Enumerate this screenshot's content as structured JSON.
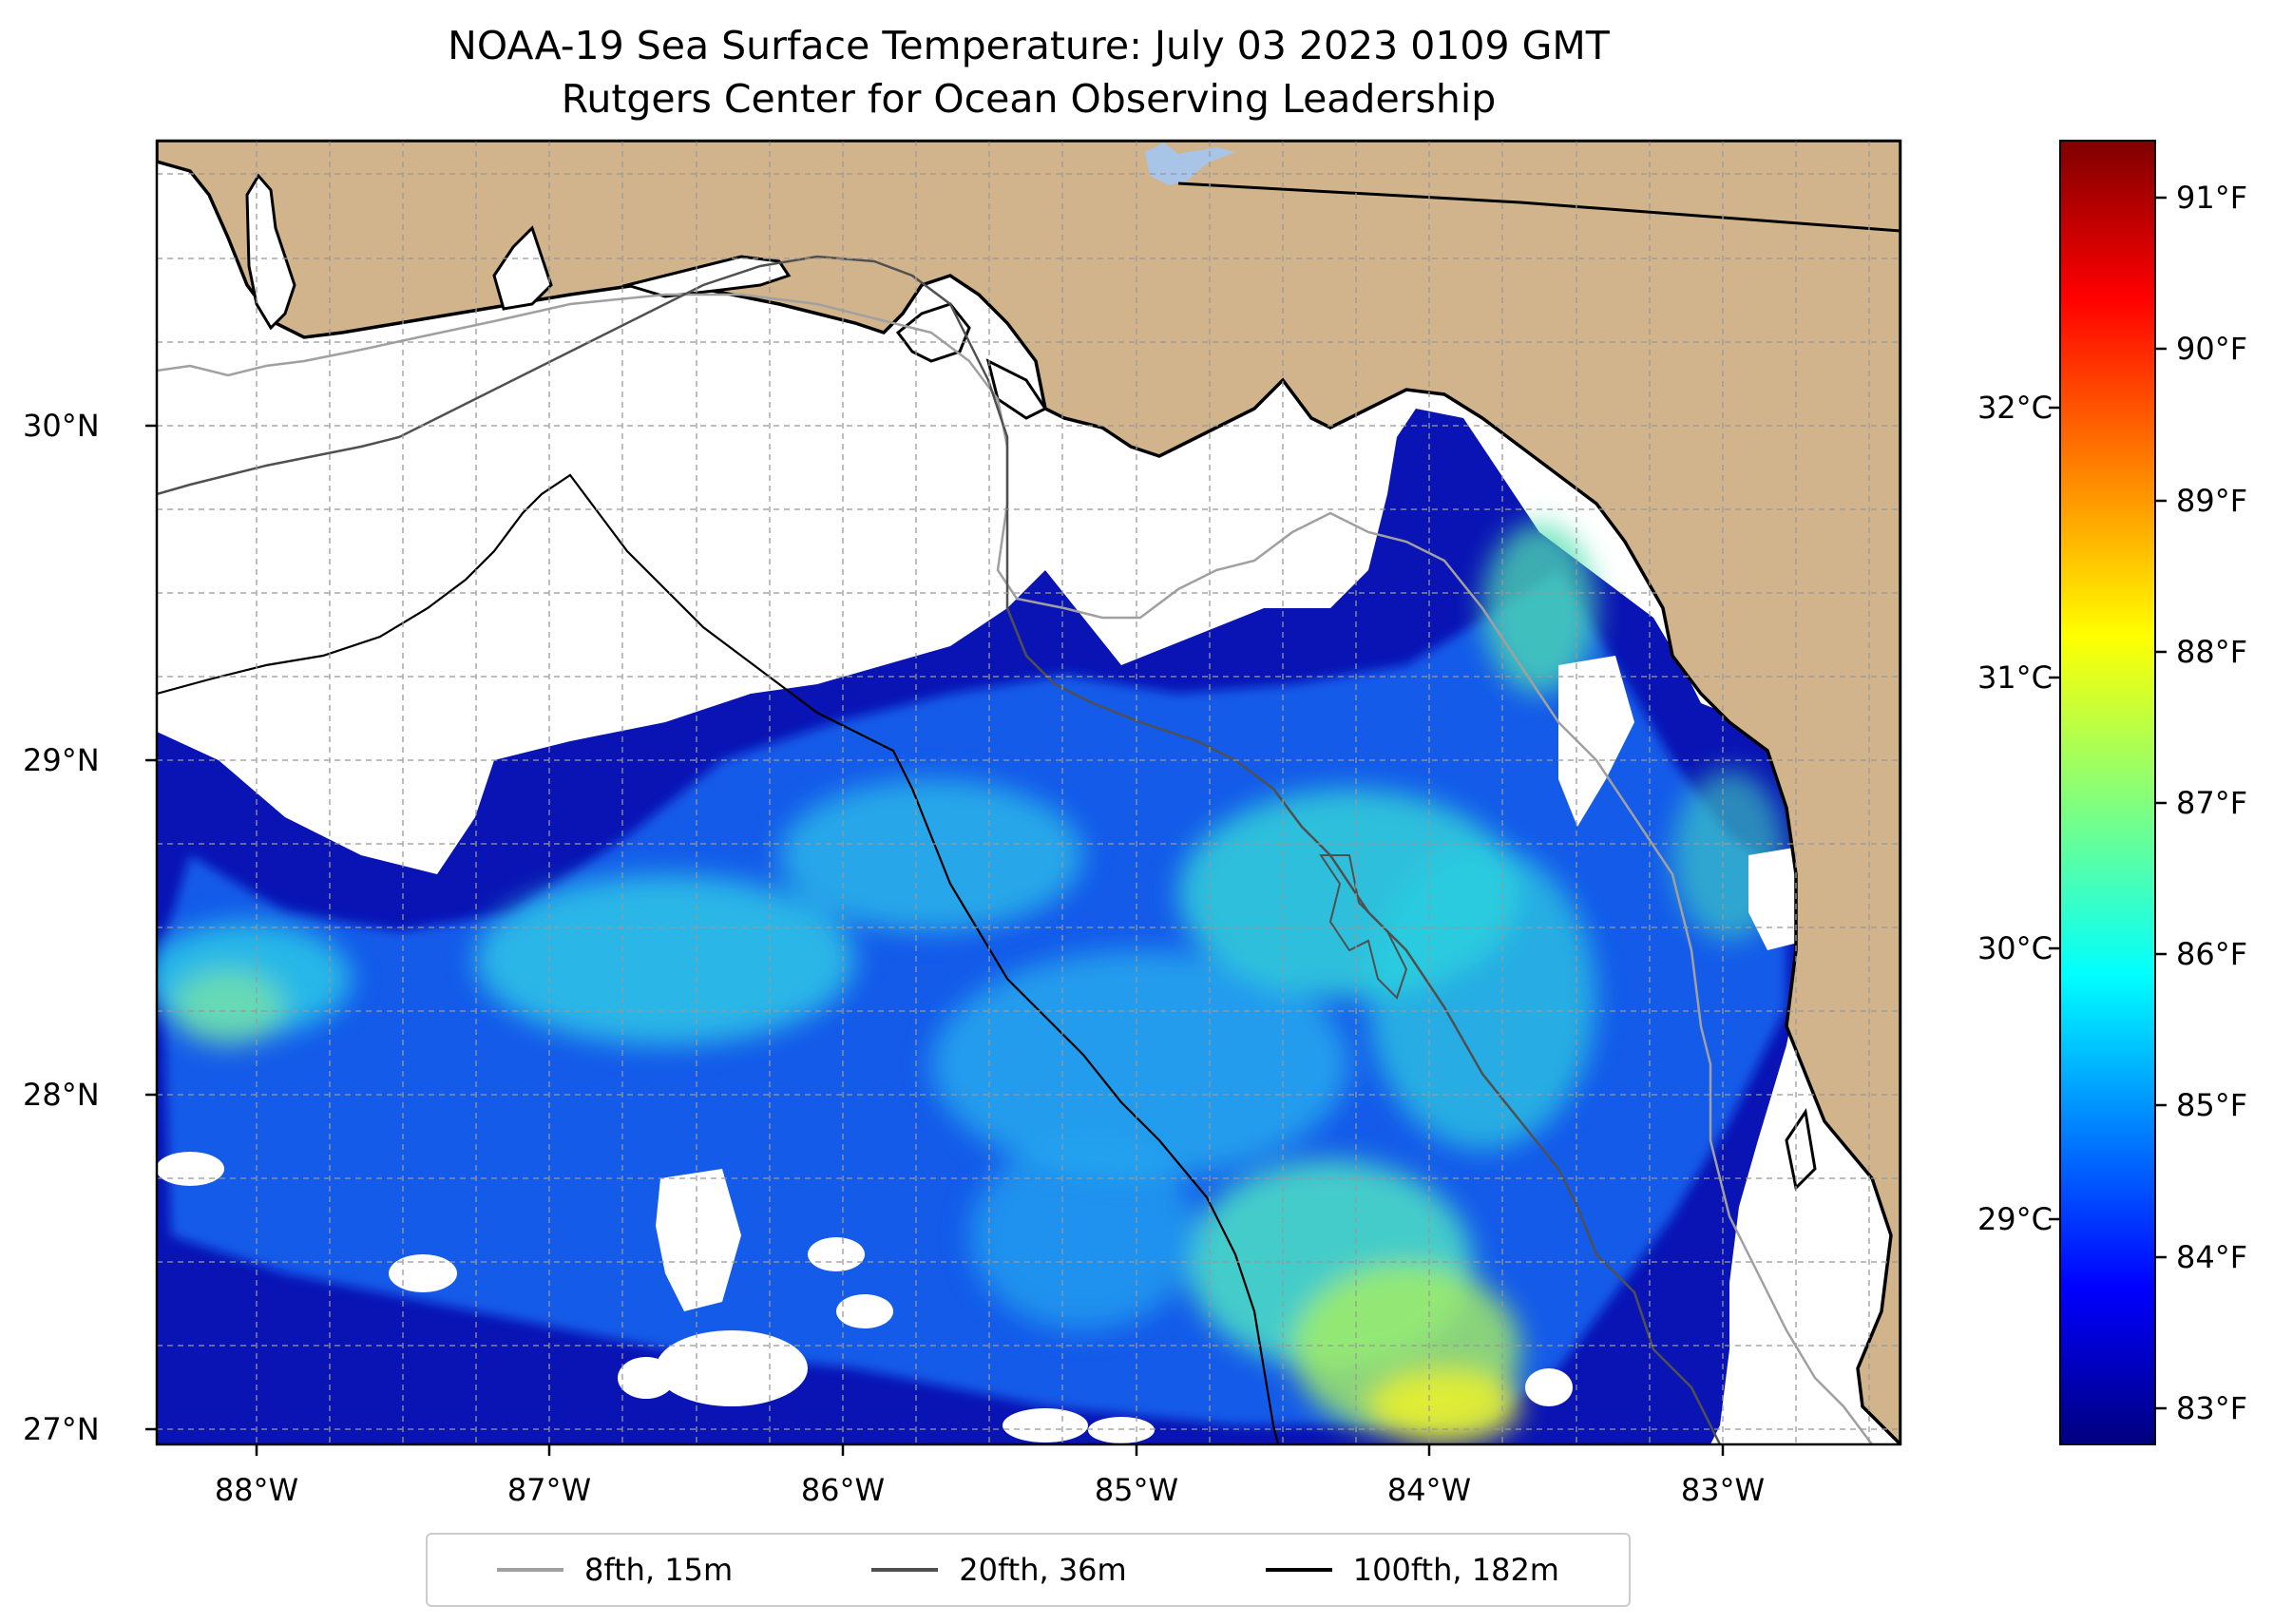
{
  "title": {
    "line1": "NOAA-19 Sea Surface Temperature: July 03 2023 0109 GMT",
    "line2": "Rutgers Center for Ocean Observing Leadership"
  },
  "axes": {
    "lat_ticks": [
      "30°N",
      "29°N",
      "28°N",
      "27°N"
    ],
    "lon_ticks": [
      "88°W",
      "87°W",
      "86°W",
      "85°W",
      "84°W",
      "83°W"
    ],
    "lat_range": [
      26.93,
      30.84
    ],
    "lon_range": [
      -88.33,
      -82.4
    ],
    "grid": true
  },
  "colorbar": {
    "colormap": "jet",
    "f_ticks": [
      "91°F",
      "90°F",
      "89°F",
      "88°F",
      "87°F",
      "86°F",
      "85°F",
      "84°F",
      "83°F"
    ],
    "c_ticks": [
      "32°C",
      "31°C",
      "30°C",
      "29°C"
    ]
  },
  "colors": {
    "land": "#d2b48c",
    "no_data": "#ffffff",
    "lake": "#a8c4e6",
    "sst_cold": "#00008b",
    "sst_warm": "#ffff33"
  },
  "legend": {
    "placement": "bottom-center",
    "items": [
      {
        "label": "8fth, 15m",
        "color": "#a0a0a0"
      },
      {
        "label": "20fth, 36m",
        "color": "#505050"
      },
      {
        "label": "100fth, 182m",
        "color": "#000000"
      }
    ]
  }
}
